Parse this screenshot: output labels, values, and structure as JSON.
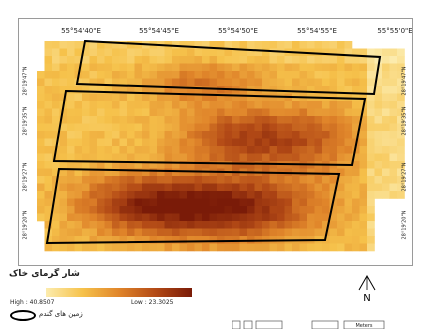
{
  "map": {
    "longitude_labels": [
      "55°54'40\"E",
      "55°54'45\"E",
      "55°54'50\"E",
      "55°54'55\"E",
      "55°55'0\"E"
    ],
    "latitude_labels_left": [
      "28°19'47\"N",
      "28°19'35\"N",
      "28°19'27\"N",
      "28°19'20\"N"
    ],
    "latitude_labels_right": [
      "28°19'47\"N",
      "28°19'35\"N",
      "28°19'27\"N",
      "28°19'20\"N"
    ]
  },
  "legend": {
    "title": "شار گرمای خاک",
    "high_label": "High : 40.8507",
    "low_label": "Low : 23.3025",
    "high_value": 40.8507,
    "low_value": 23.3025,
    "ramp_colors": [
      "#fcecae",
      "#f6c24b",
      "#e0852a",
      "#b34a16",
      "#7a1b08"
    ],
    "field_symbol_label": "زمین های گندم",
    "field_outline_color": "#000000"
  },
  "north_arrow": {
    "label": "N"
  },
  "scale_bar": {
    "unit_label": "Meters"
  }
}
